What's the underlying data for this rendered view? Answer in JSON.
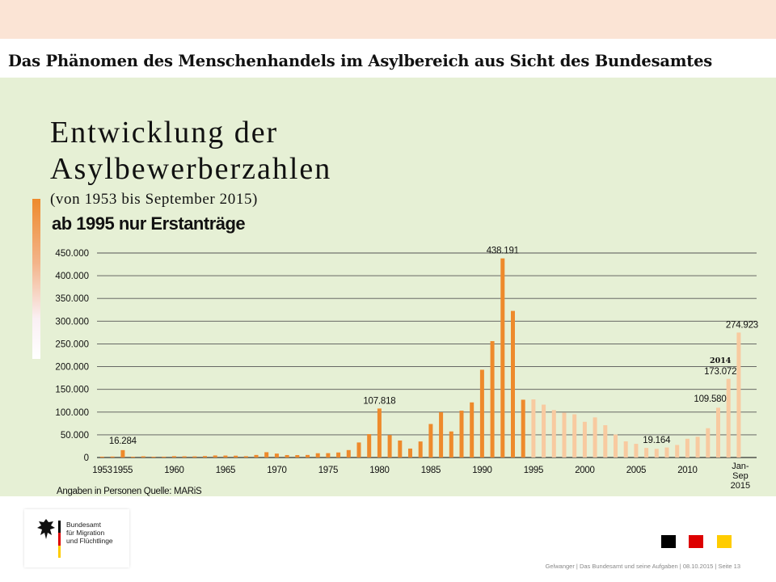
{
  "header": {
    "title": "Das Phänomen des Menschenhandels im Asylbereich aus Sicht des Bundesamtes"
  },
  "slide": {
    "heading_line1": "Entwicklung der",
    "heading_line2": "Asylbewerberzahlen",
    "subheading": "(von 1953 bis September 2015)",
    "note": "ab 1995 nur Erstanträge"
  },
  "colors": {
    "series_dark": "#ee8a2c",
    "series_light": "#f8caa0",
    "panel_bg": "#e6f0d5",
    "top_band": "#fbe4d5"
  },
  "chart_data": {
    "type": "bar",
    "title": "",
    "xlabel": "",
    "ylabel": "",
    "ylim": [
      0,
      450000
    ],
    "y_ticks": [
      "0",
      "50.000",
      "100.000",
      "150.000",
      "200.000",
      "250.000",
      "300.000",
      "350.000",
      "400.000",
      "450.000"
    ],
    "x_tick_labels": [
      "1953",
      "1955",
      "1960",
      "1965",
      "1970",
      "1975",
      "1980",
      "1985",
      "1990",
      "1995",
      "2000",
      "2005",
      "2010"
    ],
    "x_last_label": [
      "Jan-",
      "Sep",
      "2015"
    ],
    "grid": true,
    "categories": [
      "1953",
      "1954",
      "1955",
      "1956",
      "1957",
      "1958",
      "1959",
      "1960",
      "1961",
      "1962",
      "1963",
      "1964",
      "1965",
      "1966",
      "1967",
      "1968",
      "1969",
      "1970",
      "1971",
      "1972",
      "1973",
      "1974",
      "1975",
      "1976",
      "1977",
      "1978",
      "1979",
      "1980",
      "1981",
      "1982",
      "1983",
      "1984",
      "1985",
      "1986",
      "1987",
      "1988",
      "1989",
      "1990",
      "1991",
      "1992",
      "1993",
      "1994",
      "1995",
      "1996",
      "1997",
      "1998",
      "1999",
      "2000",
      "2001",
      "2002",
      "2003",
      "2004",
      "2005",
      "2006",
      "2007",
      "2008",
      "2009",
      "2010",
      "2011",
      "2012",
      "2013",
      "2014",
      "Jan-Sep 2015"
    ],
    "values": [
      1906,
      2174,
      16284,
      1800,
      2700,
      1800,
      1900,
      2980,
      2700,
      2550,
      3200,
      4500,
      4300,
      4000,
      2900,
      5600,
      11700,
      8600,
      5400,
      5300,
      5600,
      9400,
      9600,
      11100,
      16400,
      33100,
      51500,
      107818,
      49400,
      37400,
      19700,
      35300,
      73800,
      99650,
      57400,
      103100,
      121300,
      193100,
      256100,
      438191,
      322600,
      127200,
      127900,
      116400,
      104400,
      98600,
      95100,
      78600,
      88300,
      71100,
      50600,
      35600,
      30100,
      21000,
      19164,
      22100,
      27600,
      41300,
      45700,
      64500,
      109580,
      173072,
      274923
    ],
    "value_labels": [
      {
        "index": 2,
        "text": "16.284"
      },
      {
        "index": 27,
        "text": "107.818"
      },
      {
        "index": 39,
        "text": "438.191"
      },
      {
        "index": 54,
        "text": "19.164"
      },
      {
        "index": 60,
        "text": "109.580"
      },
      {
        "index": 61,
        "text": "173.072"
      },
      {
        "index": 62,
        "text": "274.923"
      }
    ],
    "highlight_label": {
      "index": 61,
      "text": "2014"
    },
    "first_first_application_year": "1995",
    "source_note": "Angaben in Personen Quelle: MARiS"
  },
  "footer": {
    "logo_line1": "Bundesamt",
    "logo_line2": "für Migration",
    "logo_line3": "und Flüchtlinge",
    "meta": "Gelwanger | Das Bundesamt und seine Aufgaben | 08.10.2015 | Seite 13",
    "square_colors": [
      "#000000",
      "#dd0000",
      "#ffcc00"
    ]
  }
}
